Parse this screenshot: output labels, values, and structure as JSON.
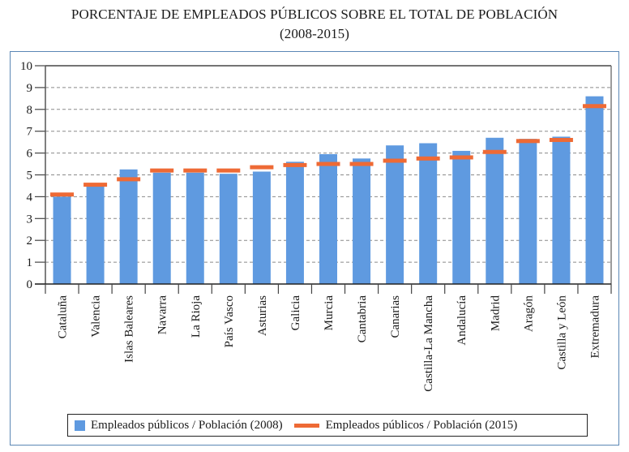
{
  "chart_data": {
    "type": "bar",
    "title": "PORCENTAJE DE EMPLEADOS PÚBLICOS SOBRE EL TOTAL DE POBLACIÓN",
    "subtitle": "(2008-2015)",
    "xlabel": "",
    "ylabel": "",
    "ylim": [
      0,
      10
    ],
    "yticks": [
      "0",
      "1",
      "2",
      "3",
      "4",
      "5",
      "6",
      "7",
      "8",
      "9",
      "10"
    ],
    "grid": true,
    "legend_position": "bottom",
    "categories": [
      "Cataluña",
      "Valencia",
      "Islas Baleares",
      "Navarra",
      "La Rioja",
      "País Vasco",
      "Asturias",
      "Galicia",
      "Murcia",
      "Cantabria",
      "Canarias",
      "Castilla-La Mancha",
      "Andalucía",
      "Madrid",
      "Aragón",
      "Castilla y León",
      "Extremadura"
    ],
    "series": [
      {
        "name": "Empleados públicos / Población (2008)",
        "kind": "bar",
        "color": "#5f9ae0",
        "values": [
          4.0,
          4.5,
          5.25,
          5.1,
          5.1,
          5.05,
          5.15,
          5.6,
          5.95,
          5.75,
          6.35,
          6.45,
          6.1,
          6.7,
          6.65,
          6.75,
          8.6
        ]
      },
      {
        "name": "Empleados públicos / Población (2015)",
        "kind": "marker",
        "color": "#ee6a35",
        "values": [
          4.1,
          4.55,
          4.8,
          5.2,
          5.2,
          5.2,
          5.35,
          5.45,
          5.5,
          5.5,
          5.65,
          5.75,
          5.8,
          6.05,
          6.55,
          6.6,
          8.15
        ]
      }
    ]
  }
}
